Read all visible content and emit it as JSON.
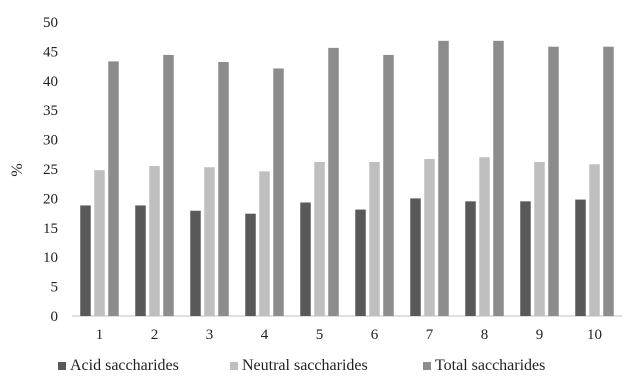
{
  "chart_data": {
    "type": "bar",
    "categories": [
      "1",
      "2",
      "3",
      "4",
      "5",
      "6",
      "7",
      "8",
      "9",
      "10"
    ],
    "series": [
      {
        "name": "Acid saccharides",
        "color": "#595959",
        "values": [
          18.8,
          18.8,
          17.9,
          17.4,
          19.3,
          18.1,
          20.0,
          19.5,
          19.5,
          19.8
        ]
      },
      {
        "name": "Neutral saccharides",
        "color": "#bfbfbf",
        "values": [
          24.8,
          25.5,
          25.3,
          24.6,
          26.2,
          26.2,
          26.7,
          27.0,
          26.2,
          25.8
        ]
      },
      {
        "name": "Total saccharides",
        "color": "#8c8c8c",
        "values": [
          43.3,
          44.4,
          43.2,
          42.1,
          45.6,
          44.4,
          46.8,
          46.8,
          45.8,
          45.8
        ]
      }
    ],
    "ylabel": "%",
    "xlabel": "",
    "ylim": [
      0,
      50
    ],
    "yticks": [
      0,
      5,
      10,
      15,
      20,
      25,
      30,
      35,
      40,
      45,
      50
    ],
    "grid": false,
    "legend": "bottom"
  }
}
